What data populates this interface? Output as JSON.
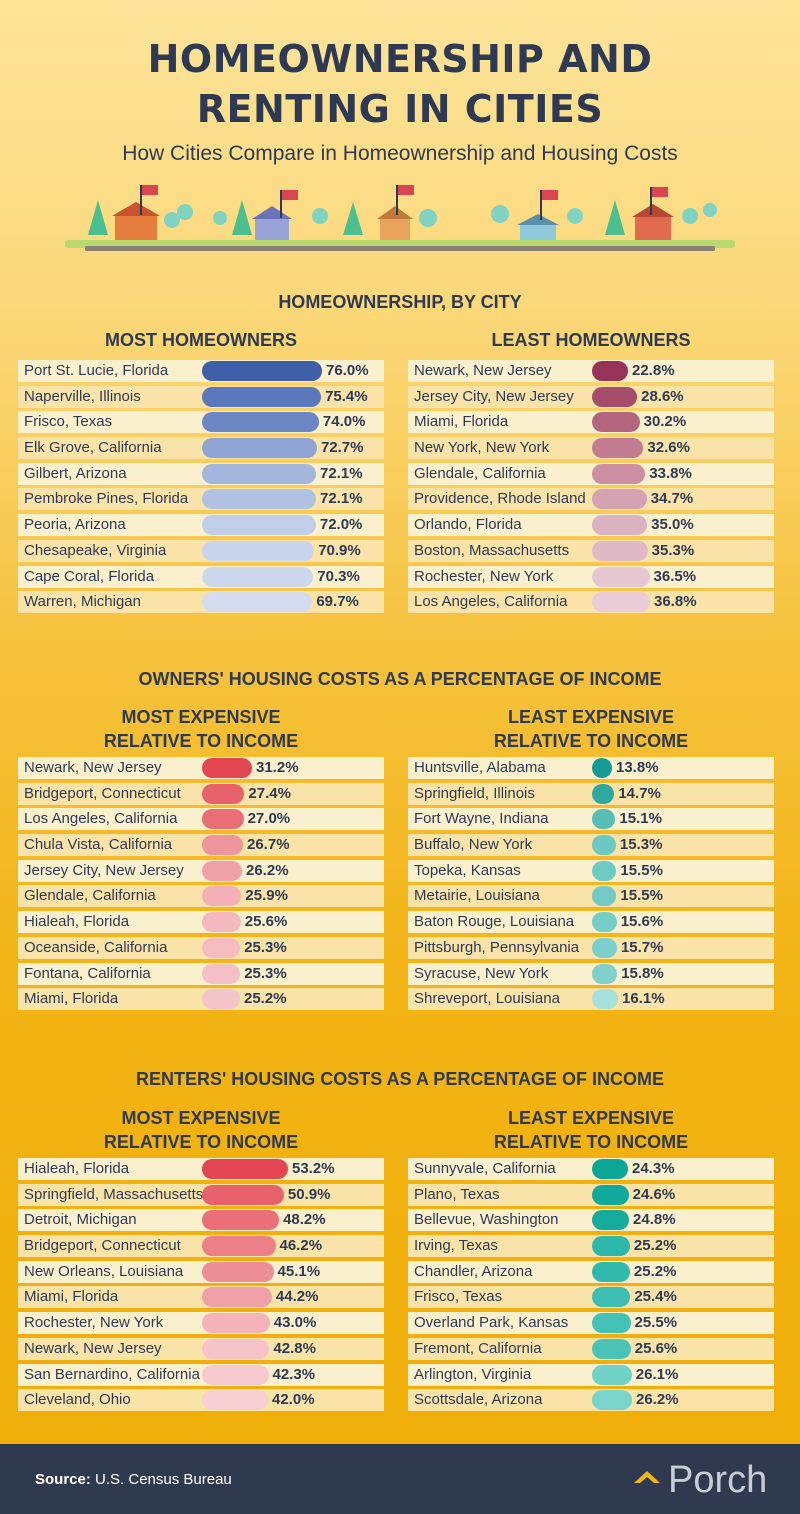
{
  "header": {
    "title_line1": "HOMEOWNERSHIP AND",
    "title_line2": "RENTING IN CITIES",
    "subtitle": "How Cities Compare in Homeownership and Housing Costs"
  },
  "colors": {
    "blue": [
      "#3f5fa8",
      "#5a78bb",
      "#6c87c3",
      "#8ea4d2",
      "#a3b6db",
      "#b0c1e2",
      "#c0cee8",
      "#c8d4eb",
      "#ccd7ec",
      "#d2dcee"
    ],
    "plum": [
      "#973358",
      "#a64d6c",
      "#b4667f",
      "#c27c92",
      "#cc8fa2",
      "#d5a2b3",
      "#dcb2c0",
      "#e0b9c6",
      "#e6c7d1",
      "#e9ccd5"
    ],
    "red": [
      "#e34652",
      "#e8626c",
      "#ea6e78",
      "#ee949c",
      "#f0a1a8",
      "#f3b1b7",
      "#f4b9bf",
      "#f4bcc1",
      "#f5c0c5",
      "#f5c4c8"
    ],
    "red2": [
      "#e34652",
      "#e8626c",
      "#ea6f79",
      "#ec7f88",
      "#ee8e96",
      "#f0a0a7",
      "#f3b3b9",
      "#f5c4c9",
      "#f5c9ce",
      "#f6cfd3"
    ],
    "teal": [
      "#149c94",
      "#2fa8a0",
      "#58bdb6",
      "#6cc8c2",
      "#6fcac4",
      "#72cbc6",
      "#75cdc8",
      "#7ccfca",
      "#80d1cc",
      "#a6e0dc"
    ],
    "teal2": [
      "#0aa799",
      "#11a99b",
      "#15ab9d",
      "#2cb8ab",
      "#30baad",
      "#3cbfb2",
      "#44c2b6",
      "#4ac4b8",
      "#70d1c7",
      "#7ad5cb"
    ]
  },
  "chart_data": [
    {
      "type": "bar",
      "title": "HOMEOWNERSHIP, BY CITY",
      "subtitle": "MOST HOMEOWNERS",
      "categories": [
        "Port St. Lucie, Florida",
        "Naperville, Illinois",
        "Frisco, Texas",
        "Elk Grove, California",
        "Gilbert, Arizona",
        "Pembroke Pines, Florida",
        "Peoria, Arizona",
        "Chesapeake, Virginia",
        "Cape Coral, Florida",
        "Warren, Michigan"
      ],
      "values": [
        76.0,
        75.4,
        74.0,
        72.7,
        72.1,
        72.1,
        72.0,
        70.9,
        70.3,
        69.7
      ],
      "labels": [
        "76.0%",
        "75.4%",
        "74.0%",
        "72.7%",
        "72.1%",
        "72.1%",
        "72.0%",
        "70.9%",
        "70.3%",
        "69.7%"
      ],
      "palette": "blue"
    },
    {
      "type": "bar",
      "title": "HOMEOWNERSHIP, BY CITY",
      "subtitle": "LEAST HOMEOWNERS",
      "categories": [
        "Newark, New Jersey",
        "Jersey City, New Jersey",
        "Miami, Florida",
        "New York, New York",
        "Glendale, California",
        "Providence, Rhode Island",
        "Orlando, Florida",
        "Boston, Massachusetts",
        "Rochester, New York",
        "Los Angeles, California"
      ],
      "values": [
        22.8,
        28.6,
        30.2,
        32.6,
        33.8,
        34.7,
        35.0,
        35.3,
        36.5,
        36.8
      ],
      "labels": [
        "22.8%",
        "28.6%",
        "30.2%",
        "32.6%",
        "33.8%",
        "34.7%",
        "35.0%",
        "35.3%",
        "36.5%",
        "36.8%"
      ],
      "palette": "plum"
    },
    {
      "type": "bar",
      "title": "OWNERS' HOUSING COSTS AS A PERCENTAGE OF INCOME",
      "subtitle": "MOST EXPENSIVE RELATIVE TO INCOME",
      "categories": [
        "Newark, New Jersey",
        "Bridgeport, Connecticut",
        "Los Angeles, California",
        "Chula Vista, California",
        "Jersey City, New Jersey",
        "Glendale, California",
        "Hialeah, Florida",
        "Oceanside, California",
        "Fontana, California",
        "Miami, Florida"
      ],
      "values": [
        31.2,
        27.4,
        27.0,
        26.7,
        26.2,
        25.9,
        25.6,
        25.3,
        25.3,
        25.2
      ],
      "labels": [
        "31.2%",
        "27.4%",
        "27.0%",
        "26.7%",
        "26.2%",
        "25.9%",
        "25.6%",
        "25.3%",
        "25.3%",
        "25.2%"
      ],
      "palette": "red"
    },
    {
      "type": "bar",
      "title": "OWNERS' HOUSING COSTS AS A PERCENTAGE OF INCOME",
      "subtitle": "LEAST EXPENSIVE RELATIVE TO INCOME",
      "categories": [
        "Huntsville, Alabama",
        "Springfield, Illinois",
        "Fort Wayne, Indiana",
        "Buffalo, New York",
        "Topeka, Kansas",
        "Metairie, Louisiana",
        "Baton Rouge, Louisiana",
        "Pittsburgh, Pennsylvania",
        "Syracuse, New York",
        "Shreveport, Louisiana"
      ],
      "values": [
        13.8,
        14.7,
        15.1,
        15.3,
        15.5,
        15.5,
        15.6,
        15.7,
        15.8,
        16.1
      ],
      "labels": [
        "13.8%",
        "14.7%",
        "15.1%",
        "15.3%",
        "15.5%",
        "15.5%",
        "15.6%",
        "15.7%",
        "15.8%",
        "16.1%"
      ],
      "palette": "teal"
    },
    {
      "type": "bar",
      "title": "RENTERS' HOUSING COSTS AS A PERCENTAGE OF INCOME",
      "subtitle": "MOST EXPENSIVE RELATIVE TO INCOME",
      "categories": [
        "Hialeah, Florida",
        "Springfield, Massachusetts",
        "Detroit, Michigan",
        "Bridgeport, Connecticut",
        "New Orleans, Louisiana",
        "Miami, Florida",
        "Rochester, New York",
        "Newark, New Jersey",
        "San Bernardino, California",
        "Cleveland, Ohio"
      ],
      "values": [
        53.2,
        50.9,
        48.2,
        46.2,
        45.1,
        44.2,
        43.0,
        42.8,
        42.3,
        42.0
      ],
      "labels": [
        "53.2%",
        "50.9%",
        "48.2%",
        "46.2%",
        "45.1%",
        "44.2%",
        "43.0%",
        "42.8%",
        "42.3%",
        "42.0%"
      ],
      "palette": "red2"
    },
    {
      "type": "bar",
      "title": "RENTERS' HOUSING COSTS AS A PERCENTAGE OF INCOME",
      "subtitle": "LEAST EXPENSIVE RELATIVE TO INCOME",
      "categories": [
        "Sunnyvale, California",
        "Plano, Texas",
        "Bellevue, Washington",
        "Irving, Texas",
        "Chandler, Arizona",
        "Frisco, Texas",
        "Overland Park, Kansas",
        "Fremont, California",
        "Arlington, Virginia",
        "Scottsdale, Arizona"
      ],
      "values": [
        24.3,
        24.6,
        24.8,
        25.2,
        25.2,
        25.4,
        25.5,
        25.6,
        26.1,
        26.2
      ],
      "labels": [
        "24.3%",
        "24.6%",
        "24.8%",
        "25.2%",
        "25.2%",
        "25.4%",
        "25.5%",
        "25.6%",
        "26.1%",
        "26.2%"
      ],
      "palette": "teal2"
    }
  ],
  "sections": {
    "s1_title": "HOMEOWNERSHIP, BY CITY",
    "s1_left": "MOST HOMEOWNERS",
    "s1_right": "LEAST HOMEOWNERS",
    "s2_title": "OWNERS' HOUSING COSTS AS A PERCENTAGE OF INCOME",
    "s2_left_l1": "MOST EXPENSIVE",
    "s2_left_l2": "RELATIVE TO INCOME",
    "s2_right_l1": "LEAST EXPENSIVE",
    "s2_right_l2": "RELATIVE TO INCOME",
    "s3_title": "RENTERS' HOUSING COSTS AS A PERCENTAGE OF INCOME",
    "s3_left_l1": "MOST EXPENSIVE",
    "s3_left_l2": "RELATIVE TO INCOME",
    "s3_right_l1": "LEAST EXPENSIVE",
    "s3_right_l2": "RELATIVE TO INCOME"
  },
  "footer": {
    "source_label": "Source:",
    "source_text": "U.S. Census Bureau",
    "brand": "Porch"
  }
}
